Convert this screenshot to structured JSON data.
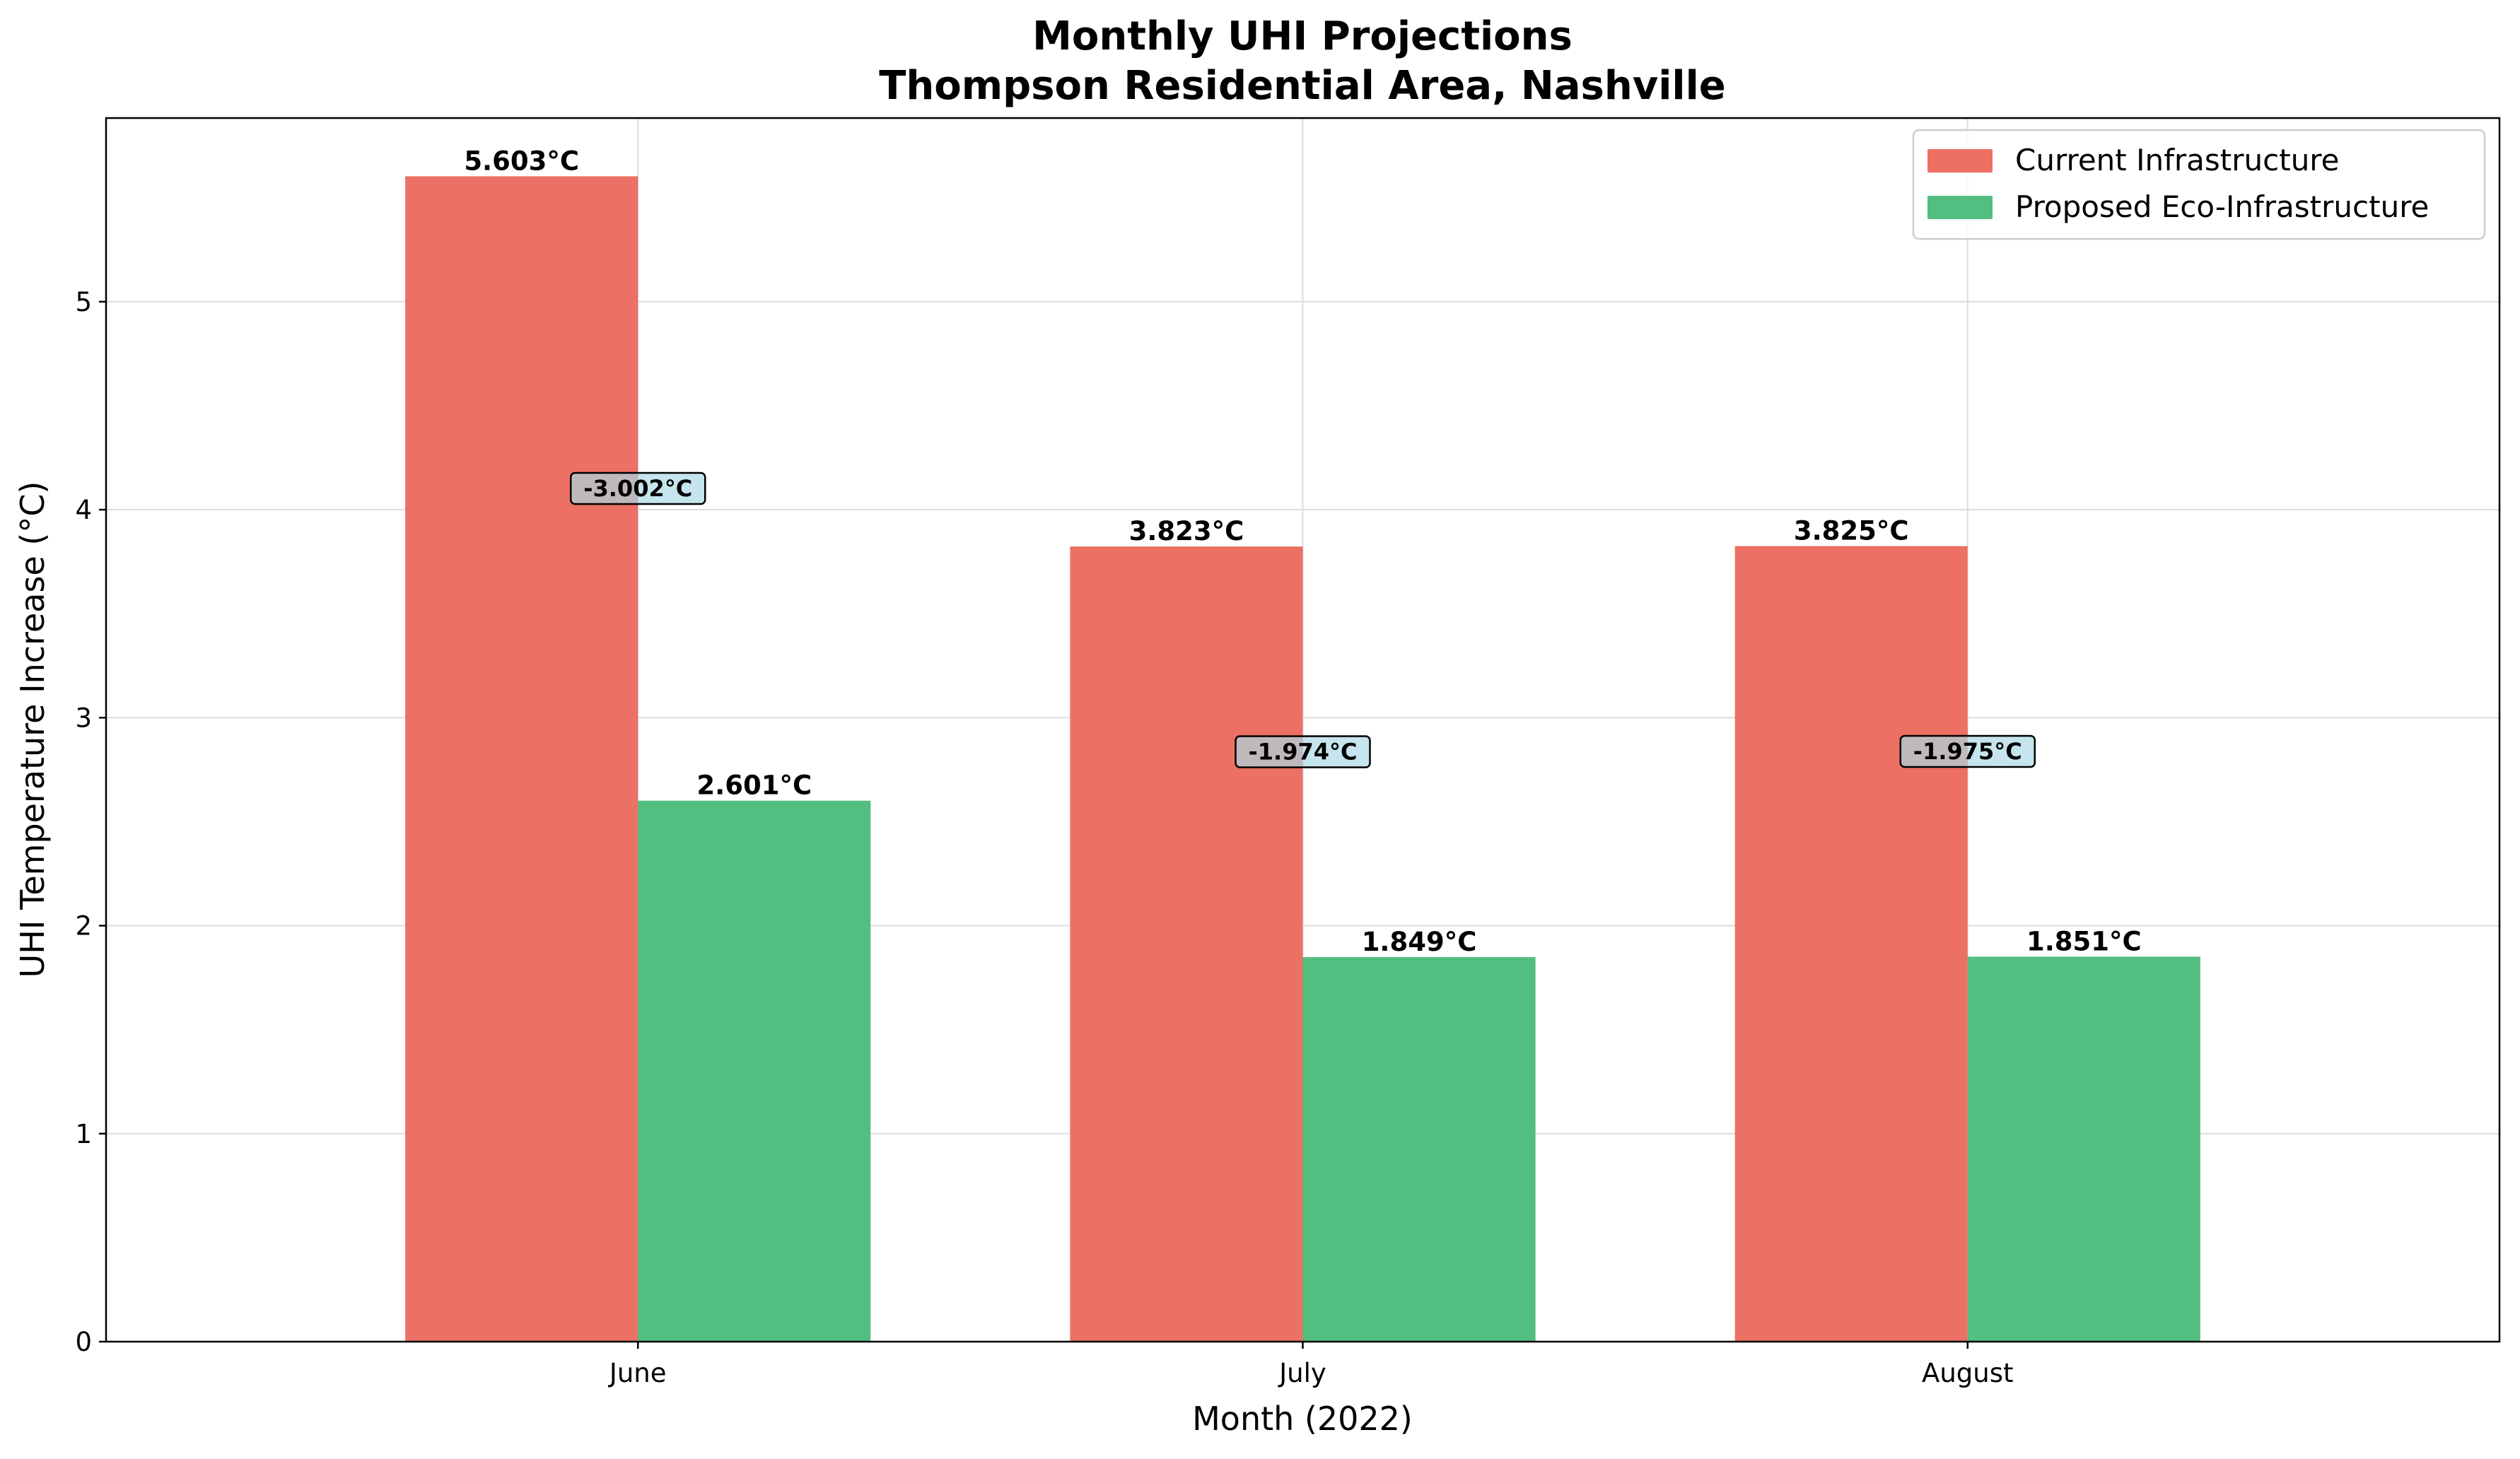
{
  "chart_data": {
    "type": "bar",
    "title": "Monthly UHI Projections",
    "subtitle": "Thompson Residential Area, Nashville",
    "xlabel": "Month (2022)",
    "ylabel": "UHI Temperature Increase (°C)",
    "categories": [
      "June",
      "July",
      "August"
    ],
    "series": [
      {
        "name": "Current Infrastructure",
        "color": "#ec7063",
        "values": [
          5.603,
          3.823,
          3.825
        ],
        "labels": [
          "5.603°C",
          "3.823°C",
          "3.825°C"
        ]
      },
      {
        "name": "Proposed Eco-Infrastructure",
        "color": "#52be80",
        "values": [
          2.601,
          1.849,
          1.851
        ],
        "labels": [
          "2.601°C",
          "1.849°C",
          "1.851°C"
        ]
      }
    ],
    "differences": {
      "values": [
        -3.002,
        -1.974,
        -1.975
      ],
      "labels": [
        "-3.002°C",
        "-1.974°C",
        "-1.975°C"
      ],
      "box_color": "#add8e6"
    },
    "ylim": [
      0,
      5.883
    ],
    "yticks": [
      0,
      1,
      2,
      3,
      4,
      5
    ],
    "ytick_labels": [
      "0",
      "1",
      "2",
      "3",
      "4",
      "5"
    ],
    "grid": true,
    "legend_position": "top-right"
  }
}
